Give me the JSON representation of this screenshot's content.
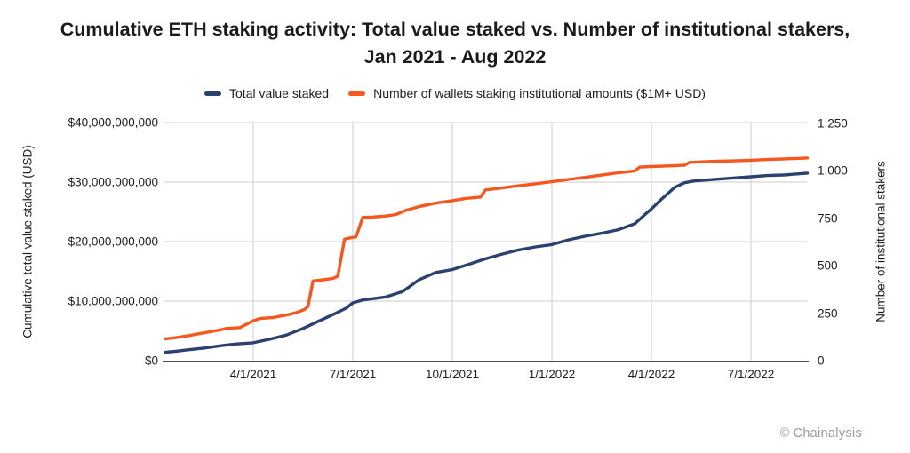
{
  "title": {
    "line1": "Cumulative ETH staking activity: Total value staked vs. Number of institutional stakers,",
    "line2": "Jan 2021 - Aug 2022"
  },
  "legend": [
    {
      "label": "Total value staked",
      "color": "#2b4170"
    },
    {
      "label": "Number of wallets staking institutional amounts ($1M+ USD)",
      "color": "#f4581f"
    }
  ],
  "watermark": {
    "icon": "©",
    "label": "Chainalysis"
  },
  "colors": {
    "total_value_staked": "#2b4170",
    "institutional_wallets": "#f4581f",
    "gridline": "#d8d8d8",
    "axis_line": "#4d4d4d",
    "title_text": "#1a1a1a",
    "watermark_text": "#9a9a9a"
  },
  "chart_data": {
    "type": "line",
    "title": "Cumulative ETH staking activity: Total value staked vs. Number of institutional stakers, Jan 2021 - Aug 2022",
    "x_unit": "months_since_2021-01-01",
    "x_range": [
      0,
      20
    ],
    "grid": true,
    "legend_position": "top",
    "x_ticks": {
      "positions": [
        3,
        6,
        9,
        12,
        15,
        18
      ],
      "labels": [
        "4/1/2021",
        "7/1/2021",
        "10/1/2021",
        "1/1/2022",
        "4/1/2022",
        "7/1/2022"
      ]
    },
    "y_left": {
      "label": "Cumulative total value staked (USD)",
      "unit": "USD billions",
      "range": [
        0,
        40
      ],
      "ticks": [
        0,
        10,
        20,
        30,
        40
      ],
      "tick_labels": [
        "$0",
        "$10,000,000,000",
        "$20,000,000,000",
        "$30,000,000,000",
        "$40,000,000,000"
      ]
    },
    "y_right": {
      "label": "Number of institutional stakers",
      "unit": "wallets",
      "range": [
        0,
        1250
      ],
      "ticks": [
        0,
        250,
        500,
        750,
        1000,
        1250
      ],
      "tick_labels": [
        "0",
        "250",
        "500",
        "750",
        "1,000",
        "1,250"
      ]
    },
    "series": [
      {
        "name": "Total value staked",
        "axis": "left",
        "unit": "USD billions",
        "color": "#2b4170",
        "points": [
          [
            0.35,
            1.4
          ],
          [
            0.7,
            1.6
          ],
          [
            1,
            1.8
          ],
          [
            1.5,
            2.1
          ],
          [
            2,
            2.5
          ],
          [
            2.5,
            2.8
          ],
          [
            3,
            3.0
          ],
          [
            3.5,
            3.6
          ],
          [
            4,
            4.3
          ],
          [
            4.5,
            5.4
          ],
          [
            5,
            6.7
          ],
          [
            5.5,
            8.0
          ],
          [
            5.8,
            8.8
          ],
          [
            6,
            9.7
          ],
          [
            6.3,
            10.2
          ],
          [
            6.6,
            10.4
          ],
          [
            7,
            10.7
          ],
          [
            7.5,
            11.6
          ],
          [
            8,
            13.6
          ],
          [
            8.5,
            14.8
          ],
          [
            9,
            15.3
          ],
          [
            9.5,
            16.2
          ],
          [
            10,
            17.1
          ],
          [
            10.5,
            17.9
          ],
          [
            11,
            18.6
          ],
          [
            11.5,
            19.1
          ],
          [
            12,
            19.5
          ],
          [
            12.5,
            20.3
          ],
          [
            13,
            20.9
          ],
          [
            13.5,
            21.4
          ],
          [
            14,
            22.0
          ],
          [
            14.5,
            23.0
          ],
          [
            14.8,
            24.5
          ],
          [
            15,
            25.5
          ],
          [
            15.3,
            27.1
          ],
          [
            15.7,
            29.1
          ],
          [
            16,
            29.9
          ],
          [
            16.3,
            30.2
          ],
          [
            17,
            30.5
          ],
          [
            17.5,
            30.7
          ],
          [
            18,
            30.9
          ],
          [
            18.5,
            31.1
          ],
          [
            19,
            31.2
          ],
          [
            19.7,
            31.5
          ]
        ]
      },
      {
        "name": "Number of wallets staking institutional amounts ($1M+ USD)",
        "axis": "right",
        "unit": "wallets",
        "color": "#f4581f",
        "points": [
          [
            0.35,
            115
          ],
          [
            0.7,
            122
          ],
          [
            1,
            130
          ],
          [
            1.5,
            146
          ],
          [
            2,
            162
          ],
          [
            2.2,
            170
          ],
          [
            2.6,
            174
          ],
          [
            2.8,
            192
          ],
          [
            3,
            210
          ],
          [
            3.2,
            222
          ],
          [
            3.6,
            227
          ],
          [
            4,
            240
          ],
          [
            4.3,
            253
          ],
          [
            4.55,
            270
          ],
          [
            4.65,
            285
          ],
          [
            4.8,
            420
          ],
          [
            5.1,
            426
          ],
          [
            5.4,
            433
          ],
          [
            5.55,
            445
          ],
          [
            5.75,
            640
          ],
          [
            5.95,
            648
          ],
          [
            6.1,
            652
          ],
          [
            6.3,
            755
          ],
          [
            6.6,
            757
          ],
          [
            7,
            762
          ],
          [
            7.3,
            770
          ],
          [
            7.6,
            792
          ],
          [
            8,
            812
          ],
          [
            8.5,
            830
          ],
          [
            9,
            843
          ],
          [
            9.4,
            855
          ],
          [
            9.85,
            862
          ],
          [
            10,
            900
          ],
          [
            10.5,
            910
          ],
          [
            11,
            922
          ],
          [
            11.5,
            932
          ],
          [
            12,
            943
          ],
          [
            12.5,
            955
          ],
          [
            13,
            966
          ],
          [
            13.5,
            978
          ],
          [
            14,
            990
          ],
          [
            14.5,
            1000
          ],
          [
            14.65,
            1020
          ],
          [
            15,
            1023
          ],
          [
            15.5,
            1026
          ],
          [
            16,
            1030
          ],
          [
            16.15,
            1045
          ],
          [
            16.6,
            1048
          ],
          [
            17,
            1051
          ],
          [
            17.5,
            1053
          ],
          [
            18,
            1056
          ],
          [
            18.5,
            1060
          ],
          [
            19,
            1063
          ],
          [
            19.7,
            1068
          ]
        ]
      }
    ]
  }
}
